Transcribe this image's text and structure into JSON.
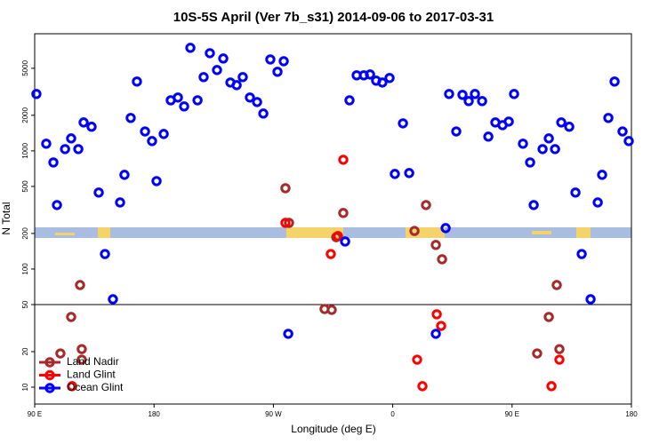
{
  "chart_data": {
    "type": "scatter",
    "title": "10S-5S April (Ver 7b_s31)   2014-09-06 to 2017-03-31",
    "x_label": "Longitude (deg E)",
    "y_label": "N Total",
    "xlim": [
      90,
      540
    ],
    "ylim": [
      7.2,
      9800
    ],
    "log_y": true,
    "hline": 50,
    "legend": "lower left",
    "xticks": [
      {
        "value": 90,
        "label": "90 E"
      },
      180,
      {
        "value": 270,
        "label": "90 W"
      },
      {
        "value": 360,
        "label": "0"
      },
      {
        "value": 450,
        "label": "90 E"
      },
      {
        "value": 540,
        "label": "180"
      }
    ],
    "yticks": [
      10,
      20,
      50,
      100,
      200,
      500,
      1000,
      2000,
      5000
    ],
    "series": [
      {
        "name": "Land Nadir",
        "color": "#a52a2a",
        "x": [
          109.4,
          117.5,
          124.2,
          125.5,
          125.5,
          279.1,
          281.8,
          308.6,
          314.0,
          317.4,
          322.7,
          376.4,
          385.1,
          392.5,
          397.2,
          468.9,
          477.7,
          483.7,
          485.7
        ],
        "values": [
          19.3,
          39.3,
          73.2,
          21,
          17.1,
          483,
          246,
          45.9,
          45.1,
          186,
          298,
          210,
          348,
          160,
          121,
          19.3,
          39.3,
          73.2,
          21
        ]
      },
      {
        "name": "Land Glint",
        "color": "#ff0000",
        "x": [
          118.2,
          279.1,
          313.3,
          318.7,
          322.7,
          378.4,
          382.4,
          393.2,
          396.5,
          479.7,
          485.7
        ],
        "values": [
          10.2,
          246,
          134,
          190,
          841,
          17.1,
          10.2,
          41.4,
          33,
          10.2,
          17.1
        ]
      },
      {
        "name": "Ocean Glint",
        "color": "#0000ff",
        "x": [
          91.3,
          98.7,
          104.1,
          106.8,
          112.9,
          117.5,
          122.9,
          126.9,
          132.9,
          138.3,
          143.0,
          149.0,
          154.4,
          157.7,
          162.4,
          167.1,
          173.2,
          178.5,
          181.9,
          187.3,
          192.6,
          198.0,
          202.7,
          207.4,
          212.8,
          217.4,
          222.1,
          227.5,
          232.2,
          237.6,
          242.3,
          246.9,
          252.3,
          257.7,
          262.4,
          267.7,
          273.1,
          277.8,
          281.2,
          324.1,
          327.4,
          332.8,
          338.2,
          342.9,
          347.5,
          352.2,
          357.6,
          361.6,
          367.7,
          372.4,
          392.5,
          399.9,
          402.5,
          407.9,
          412.6,
          417.3,
          422.0,
          427.4,
          432.1,
          437.4,
          442.8,
          447.5,
          451.5,
          458.2,
          463.6,
          466.3,
          473.0,
          477.7,
          482.4,
          487.1,
          493.1,
          497.8,
          502.5,
          509.2,
          514.6,
          517.9,
          522.6,
          527.3,
          533.3,
          538.0
        ],
        "values": [
          3030,
          1150,
          798,
          348,
          1035,
          1275,
          1035,
          1740,
          1600,
          444,
          134,
          55.5,
          366,
          627,
          1900,
          3860,
          1460,
          1210,
          555,
          1390,
          2680,
          2830,
          2380,
          7450,
          2680,
          4210,
          6710,
          4830,
          6050,
          3790,
          3600,
          4210,
          2830,
          2590,
          2070,
          5940,
          4670,
          5740,
          28.3,
          171,
          2680,
          4360,
          4360,
          4430,
          3930,
          3790,
          4140,
          638,
          1710,
          649,
          28.3,
          222,
          3030,
          1460,
          2980,
          2640,
          3030,
          2640,
          1320,
          1740,
          1650,
          1770,
          3030,
          1150,
          798,
          348,
          1035,
          1275,
          1035,
          1740,
          1600,
          444,
          134,
          55.5,
          366,
          627,
          1900,
          3860,
          1460,
          1210
        ]
      }
    ]
  }
}
